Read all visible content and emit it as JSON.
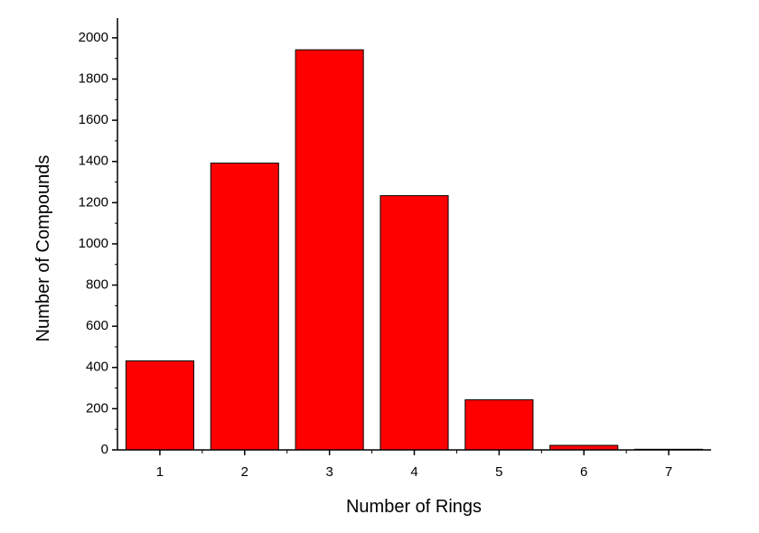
{
  "chart_data": {
    "type": "bar",
    "x_label": "Number of Rings",
    "y_label": "Number of Compounds",
    "x": [
      1,
      2,
      3,
      4,
      5,
      6,
      7
    ],
    "values": [
      432,
      1392,
      1942,
      1234,
      243,
      22,
      3
    ],
    "color": "#ff0000",
    "edge_color": "#000000",
    "xlim": [
      0.5,
      7.5
    ],
    "xticks": [
      1,
      2,
      3,
      4,
      5,
      6,
      7
    ],
    "ylim": [
      0,
      2096
    ],
    "yticks": [
      0,
      200,
      400,
      600,
      800,
      1000,
      1200,
      1400,
      1600,
      1800,
      2000
    ],
    "bar_width": 0.8,
    "grid": false
  }
}
